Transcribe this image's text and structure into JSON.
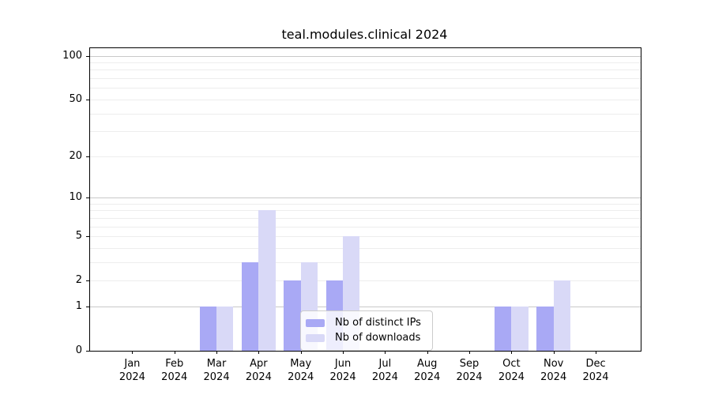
{
  "chart_data": {
    "type": "bar",
    "title": "teal.modules.clinical 2024",
    "x_tick_labels": [
      [
        "Jan",
        "2024"
      ],
      [
        "Feb",
        "2024"
      ],
      [
        "Mar",
        "2024"
      ],
      [
        "Apr",
        "2024"
      ],
      [
        "May",
        "2024"
      ],
      [
        "Jun",
        "2024"
      ],
      [
        "Jul",
        "2024"
      ],
      [
        "Aug",
        "2024"
      ],
      [
        "Sep",
        "2024"
      ],
      [
        "Oct",
        "2024"
      ],
      [
        "Nov",
        "2024"
      ],
      [
        "Dec",
        "2024"
      ]
    ],
    "series": [
      {
        "name": "Nb of distinct IPs",
        "color": "#a9a9f5",
        "values": [
          0,
          0,
          1,
          3,
          2,
          2,
          0,
          0,
          0,
          1,
          1,
          0
        ]
      },
      {
        "name": "Nb of downloads",
        "color": "#d9d9f7",
        "values": [
          0,
          0,
          1,
          8,
          3,
          5,
          0,
          0,
          0,
          1,
          2,
          0
        ]
      }
    ],
    "yscale": "log1p",
    "y_tick_values": [
      "100",
      "50",
      "20",
      "10",
      "5",
      "2",
      "1",
      "0"
    ],
    "y_major_gridlines": [
      1,
      10,
      100
    ],
    "y_minor_gridlines": [
      2,
      3,
      4,
      5,
      6,
      7,
      8,
      9,
      20,
      30,
      40,
      50,
      60,
      70,
      80,
      90
    ],
    "ylim": [
      0,
      113
    ],
    "grid": "on",
    "legend_position": "lower-center"
  }
}
